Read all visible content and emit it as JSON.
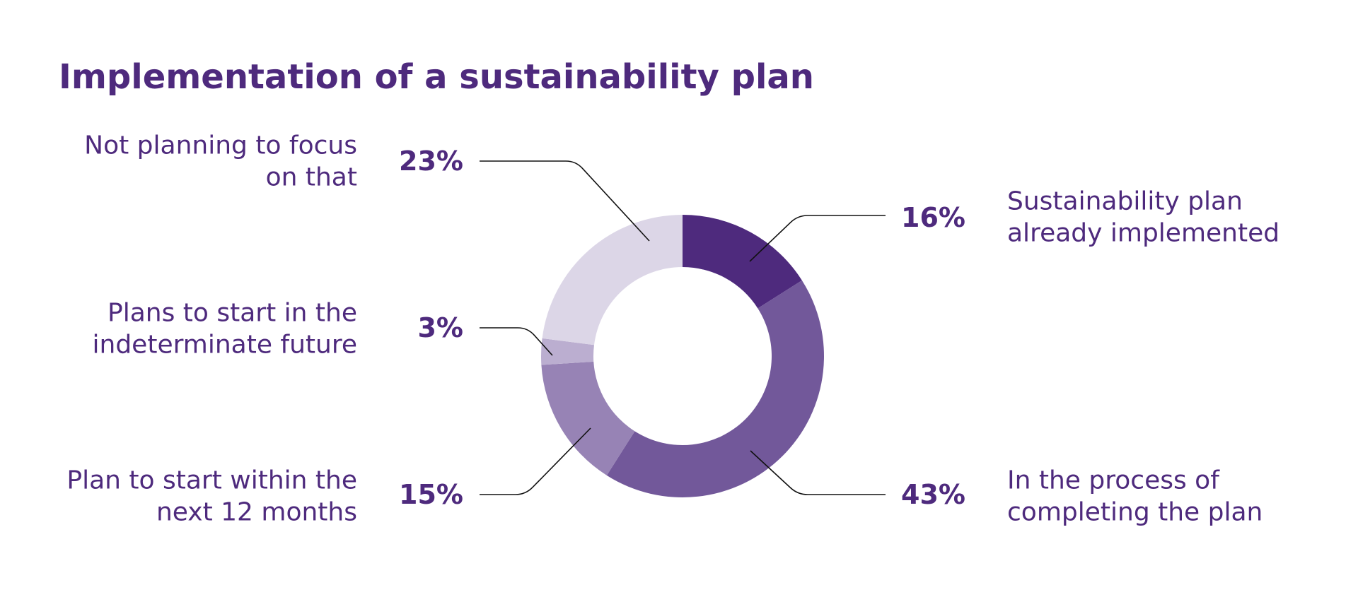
{
  "chart_data": {
    "type": "pie",
    "title": "Implementation of a sustainability plan",
    "categories": [
      "Sustainability plan already implemented",
      "In the process of completing the plan",
      "Plan to start within the next 12 months",
      "Plans to start in the indeterminate future",
      "Not planning to focus on that"
    ],
    "values": [
      16,
      43,
      15,
      3,
      23
    ],
    "unit": "%",
    "legend": "callout labels",
    "slices": [
      {
        "value": 16,
        "value_label": "16%",
        "label_lines": [
          "Sustainability plan",
          "already implemented"
        ],
        "color": "#4e2a7d"
      },
      {
        "value": 43,
        "value_label": "43%",
        "label_lines": [
          "In the process of",
          "completing the plan"
        ],
        "color": "#72589a"
      },
      {
        "value": 15,
        "value_label": "15%",
        "label_lines": [
          "Plan to start within the",
          "next 12 months"
        ],
        "color": "#9783b5"
      },
      {
        "value": 3,
        "value_label": "3%",
        "label_lines": [
          "Plans to start in the",
          "indeterminate future"
        ],
        "color": "#bbaed0"
      },
      {
        "value": 23,
        "value_label": "23%",
        "label_lines": [
          "Not planning to focus",
          "on that"
        ],
        "color": "#dcd6e7"
      }
    ]
  },
  "colors": {
    "text": "#4e2a7d",
    "leader_line": "#111111"
  }
}
